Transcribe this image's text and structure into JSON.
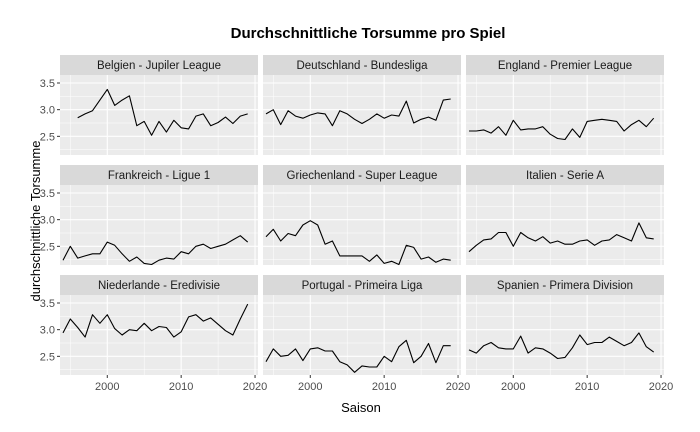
{
  "chart_data": {
    "type": "line",
    "title": "Durchschnittliche Torsumme pro Spiel",
    "xlabel": "Saison",
    "ylabel": "durchschnittliche Torsumme",
    "xlim": [
      1993.6,
      2020.4
    ],
    "ylim": [
      2.15,
      3.65
    ],
    "x_ticks": [
      2000,
      2010,
      2020
    ],
    "y_ticks": [
      2.5,
      3.0,
      3.5
    ],
    "y_tick_labels": [
      "2.5",
      "3.0",
      "3.5"
    ],
    "grid": true,
    "panel_layout": "3x3 facets, shared axes",
    "colors": {
      "panel_bg": "#ebebeb",
      "strip_bg": "#d9d9d9",
      "grid": "#ffffff",
      "line": "#000000"
    },
    "panels": [
      {
        "name": "Belgien - Jupiler League",
        "x": [
          1996,
          1997,
          1998,
          1999,
          2000,
          2001,
          2002,
          2003,
          2004,
          2005,
          2006,
          2007,
          2008,
          2009,
          2010,
          2011,
          2012,
          2013,
          2014,
          2015,
          2016,
          2017,
          2018,
          2019
        ],
        "y": [
          2.85,
          2.92,
          2.98,
          3.18,
          3.38,
          3.08,
          3.18,
          3.26,
          2.7,
          2.78,
          2.52,
          2.78,
          2.58,
          2.8,
          2.66,
          2.64,
          2.88,
          2.92,
          2.7,
          2.76,
          2.86,
          2.74,
          2.88,
          2.92
        ]
      },
      {
        "name": "Deutschland - Bundesliga",
        "x": [
          1994,
          1995,
          1996,
          1997,
          1998,
          1999,
          2000,
          2001,
          2002,
          2003,
          2004,
          2005,
          2006,
          2007,
          2008,
          2009,
          2010,
          2011,
          2012,
          2013,
          2014,
          2015,
          2016,
          2017,
          2018,
          2019
        ],
        "y": [
          2.92,
          3.0,
          2.72,
          2.98,
          2.88,
          2.84,
          2.9,
          2.94,
          2.92,
          2.7,
          2.98,
          2.92,
          2.82,
          2.74,
          2.82,
          2.92,
          2.84,
          2.9,
          2.88,
          3.16,
          2.75,
          2.82,
          2.86,
          2.8,
          3.18,
          3.2
        ]
      },
      {
        "name": "England - Premier League",
        "x": [
          1994,
          1995,
          1996,
          1997,
          1998,
          1999,
          2000,
          2001,
          2002,
          2003,
          2004,
          2005,
          2006,
          2007,
          2008,
          2009,
          2010,
          2011,
          2012,
          2013,
          2014,
          2015,
          2016,
          2017,
          2018,
          2019
        ],
        "y": [
          2.6,
          2.6,
          2.62,
          2.56,
          2.68,
          2.52,
          2.8,
          2.62,
          2.64,
          2.64,
          2.68,
          2.54,
          2.46,
          2.44,
          2.64,
          2.48,
          2.78,
          2.8,
          2.82,
          2.8,
          2.78,
          2.6,
          2.72,
          2.8,
          2.68,
          2.84
        ]
      },
      {
        "name": "Frankreich - Ligue 1",
        "x": [
          1994,
          1995,
          1996,
          1997,
          1998,
          1999,
          2000,
          2001,
          2002,
          2003,
          2004,
          2005,
          2006,
          2007,
          2008,
          2009,
          2010,
          2011,
          2012,
          2013,
          2014,
          2015,
          2016,
          2017,
          2018,
          2019
        ],
        "y": [
          2.24,
          2.5,
          2.28,
          2.32,
          2.36,
          2.36,
          2.58,
          2.52,
          2.36,
          2.22,
          2.3,
          2.18,
          2.16,
          2.24,
          2.28,
          2.26,
          2.4,
          2.36,
          2.5,
          2.54,
          2.46,
          2.5,
          2.54,
          2.62,
          2.7,
          2.58
        ]
      },
      {
        "name": "Griechenland - Super League",
        "x": [
          1994,
          1995,
          1996,
          1997,
          1998,
          1999,
          2000,
          2001,
          2002,
          2003,
          2004,
          2005,
          2006,
          2007,
          2008,
          2009,
          2010,
          2011,
          2012,
          2013,
          2014,
          2015,
          2016,
          2017,
          2018,
          2019
        ],
        "y": [
          2.68,
          2.82,
          2.6,
          2.74,
          2.7,
          2.9,
          2.98,
          2.9,
          2.54,
          2.6,
          2.32,
          2.32,
          2.32,
          2.32,
          2.22,
          2.34,
          2.18,
          2.22,
          2.16,
          2.52,
          2.48,
          2.26,
          2.3,
          2.2,
          2.26,
          2.24
        ]
      },
      {
        "name": "Italien - Serie A",
        "x": [
          1994,
          1995,
          1996,
          1997,
          1998,
          1999,
          2000,
          2001,
          2002,
          2003,
          2004,
          2005,
          2006,
          2007,
          2008,
          2009,
          2010,
          2011,
          2012,
          2013,
          2014,
          2015,
          2016,
          2017,
          2018,
          2019
        ],
        "y": [
          2.4,
          2.52,
          2.62,
          2.64,
          2.76,
          2.76,
          2.5,
          2.76,
          2.66,
          2.6,
          2.68,
          2.56,
          2.6,
          2.54,
          2.54,
          2.6,
          2.62,
          2.52,
          2.6,
          2.62,
          2.72,
          2.66,
          2.6,
          2.94,
          2.66,
          2.64
        ]
      },
      {
        "name": "Niederlande - Eredivisie",
        "x": [
          1994,
          1995,
          1996,
          1997,
          1998,
          1999,
          2000,
          2001,
          2002,
          2003,
          2004,
          2005,
          2006,
          2007,
          2008,
          2009,
          2010,
          2011,
          2012,
          2013,
          2014,
          2015,
          2016,
          2017,
          2018,
          2019
        ],
        "y": [
          2.94,
          3.2,
          3.04,
          2.86,
          3.28,
          3.12,
          3.28,
          3.02,
          2.9,
          3.0,
          2.98,
          3.12,
          2.98,
          3.06,
          3.04,
          2.86,
          2.96,
          3.24,
          3.28,
          3.16,
          3.22,
          3.1,
          2.98,
          2.9,
          3.2,
          3.48
        ]
      },
      {
        "name": "Portugal - Primeira Liga",
        "x": [
          1994,
          1995,
          1996,
          1997,
          1998,
          1999,
          2000,
          2001,
          2002,
          2003,
          2004,
          2005,
          2006,
          2007,
          2008,
          2009,
          2010,
          2011,
          2012,
          2013,
          2014,
          2015,
          2016,
          2017,
          2018,
          2019
        ],
        "y": [
          2.4,
          2.64,
          2.5,
          2.52,
          2.64,
          2.42,
          2.64,
          2.66,
          2.6,
          2.6,
          2.4,
          2.34,
          2.2,
          2.32,
          2.3,
          2.3,
          2.5,
          2.4,
          2.68,
          2.8,
          2.38,
          2.5,
          2.74,
          2.38,
          2.7,
          2.7
        ]
      },
      {
        "name": "Spanien - Primera Division",
        "x": [
          1994,
          1995,
          1996,
          1997,
          1998,
          1999,
          2000,
          2001,
          2002,
          2003,
          2004,
          2005,
          2006,
          2007,
          2008,
          2009,
          2010,
          2011,
          2012,
          2013,
          2014,
          2015,
          2016,
          2017,
          2018,
          2019
        ],
        "y": [
          2.62,
          2.56,
          2.7,
          2.76,
          2.66,
          2.64,
          2.64,
          2.88,
          2.56,
          2.66,
          2.64,
          2.56,
          2.46,
          2.48,
          2.66,
          2.9,
          2.72,
          2.76,
          2.76,
          2.86,
          2.78,
          2.7,
          2.76,
          2.94,
          2.68,
          2.58
        ]
      }
    ]
  }
}
